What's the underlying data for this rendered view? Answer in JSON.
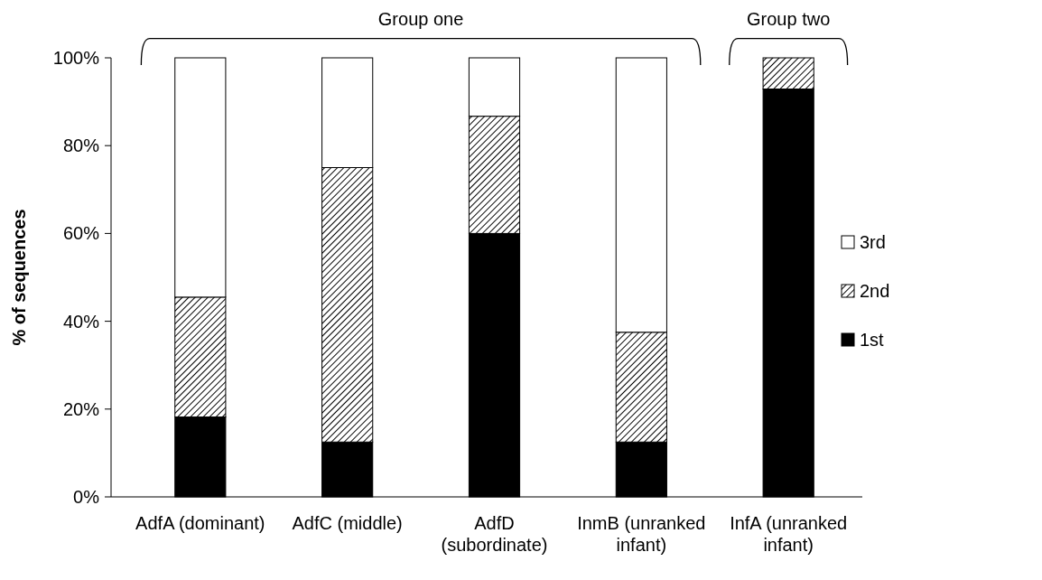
{
  "chart_data": {
    "type": "bar",
    "stacked": true,
    "ylabel": "% of sequences",
    "categories": [
      "AdfA (dominant)",
      "AdfC (middle)",
      "AdfD (subordinate)",
      "InmB (unranked infant)",
      "InfA (unranked infant)"
    ],
    "series": [
      {
        "name": "1st",
        "color": "#000000",
        "values": [
          18.2,
          12.5,
          60,
          12.5,
          92.9
        ]
      },
      {
        "name": "2nd",
        "color": "#000000",
        "values": [
          27.3,
          62.5,
          26.7,
          25,
          7.1
        ]
      },
      {
        "name": "3rd",
        "color": "#ffffff",
        "values": [
          54.5,
          25,
          13.3,
          62.5,
          0
        ]
      }
    ],
    "ylim": [
      0,
      100
    ],
    "yticks": [
      {
        "value": 0,
        "label": "0%"
      },
      {
        "value": 20,
        "label": "20%"
      },
      {
        "value": 40,
        "label": "40%"
      },
      {
        "value": 60,
        "label": "60%"
      },
      {
        "value": 80,
        "label": "80%"
      },
      {
        "value": 100,
        "label": "100%"
      }
    ],
    "legend": "right",
    "grid": false,
    "annotations": [
      "Group one",
      "Group two"
    ]
  }
}
